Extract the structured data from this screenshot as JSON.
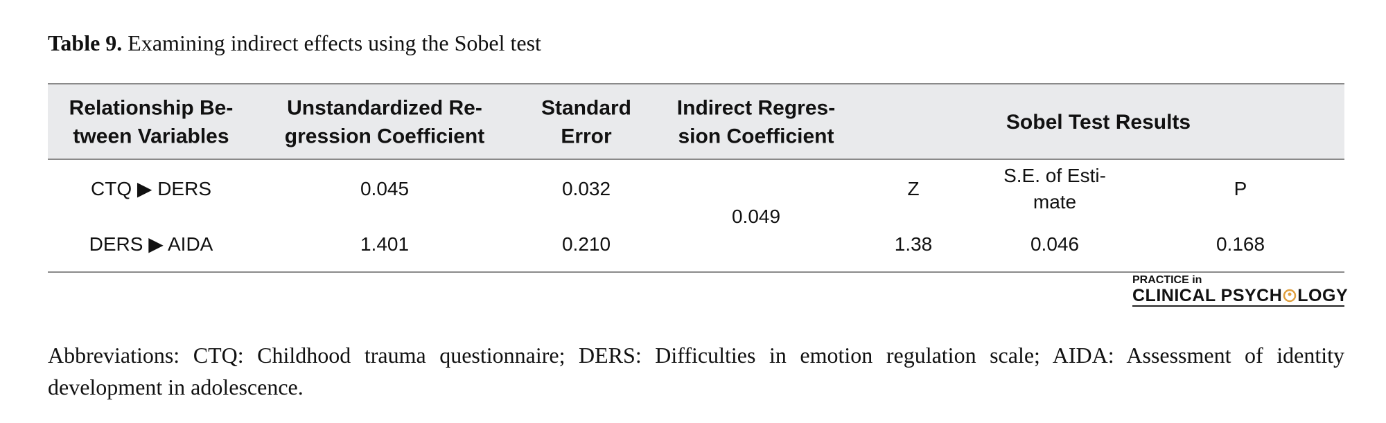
{
  "caption": {
    "label": "Table 9.",
    "text": "Examining indirect effects using the Sobel test"
  },
  "table": {
    "header": [
      "Relationship Be-\ntween Variables",
      "Unstandardized Re-\ngression Coefficient",
      "Standard\nError",
      "Indirect Regres-\nsion Coefficient",
      "Sobel Test Results"
    ],
    "rows": [
      [
        "CTQ ▶ DERS",
        "0.045",
        "0.032",
        "0.049",
        "Z",
        "S.E. of Esti-\nmate",
        "P"
      ],
      [
        "DERS ▶ AIDA",
        "1.401",
        "0.210",
        "1.38",
        "0.046",
        "0.168"
      ]
    ]
  },
  "logo": {
    "line1": "PRACTICE in",
    "line2a": "CLINICAL PSYCH",
    "line2b": "LOGY"
  },
  "footnote": "Abbreviations: CTQ: Childhood trauma questionnaire; DERS: Difficulties in emotion regulation scale; AIDA: Assessment of identity development in adolescence."
}
